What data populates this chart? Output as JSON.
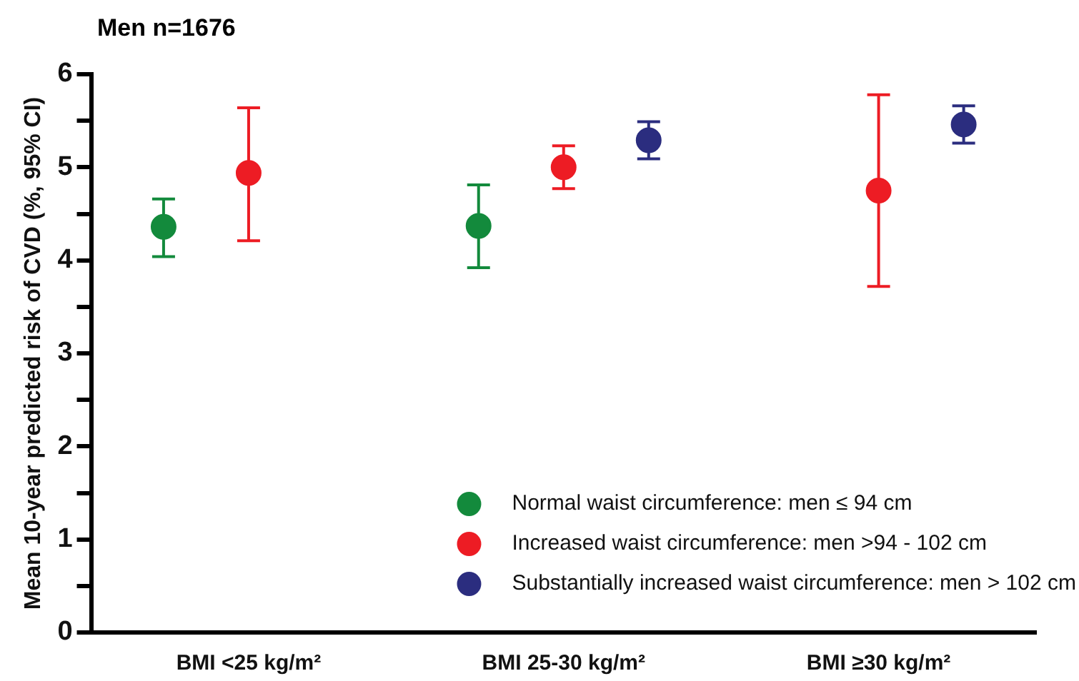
{
  "chart_data": {
    "type": "scatter",
    "title": "Men n=1676",
    "ylabel": "Mean 10-year predicted risk of CVD (%, 95% CI)",
    "categories": [
      "BMI <25 kg/m²",
      "BMI 25-30 kg/m²",
      "BMI ≥30 kg/m²"
    ],
    "series": [
      {
        "name": "Normal waist circumference: men ≤ 94 cm",
        "color": "#138a3c",
        "values": [
          4.36,
          4.37,
          null
        ],
        "errors": [
          [
            4.04,
            4.66
          ],
          [
            3.92,
            4.81
          ],
          null
        ]
      },
      {
        "name": "Increased waist circumference: men >94 - 102 cm",
        "color": "#ed1c24",
        "values": [
          4.94,
          5.0,
          4.75
        ],
        "errors": [
          [
            4.21,
            5.64
          ],
          [
            4.77,
            5.23
          ],
          [
            3.72,
            5.78
          ]
        ]
      },
      {
        "name": "Substantially increased waist circumference: men > 102 cm",
        "color": "#2b2d7f",
        "values": [
          null,
          5.29,
          5.46
        ],
        "errors": [
          null,
          [
            5.09,
            5.49
          ],
          [
            5.26,
            5.66
          ]
        ]
      }
    ],
    "ylim": [
      0,
      6
    ],
    "yticks": [
      0,
      {
        "value": 0.5,
        "label": null
      },
      1,
      {
        "value": 1.5,
        "label": null
      },
      2,
      {
        "value": 2.5,
        "label": null
      },
      3,
      {
        "value": 3.5,
        "label": null
      },
      4,
      {
        "value": 4.5,
        "label": null
      },
      5,
      {
        "value": 5.5,
        "label": null
      },
      6
    ],
    "grid": false,
    "legend": "bottom right",
    "marker": "circle"
  }
}
